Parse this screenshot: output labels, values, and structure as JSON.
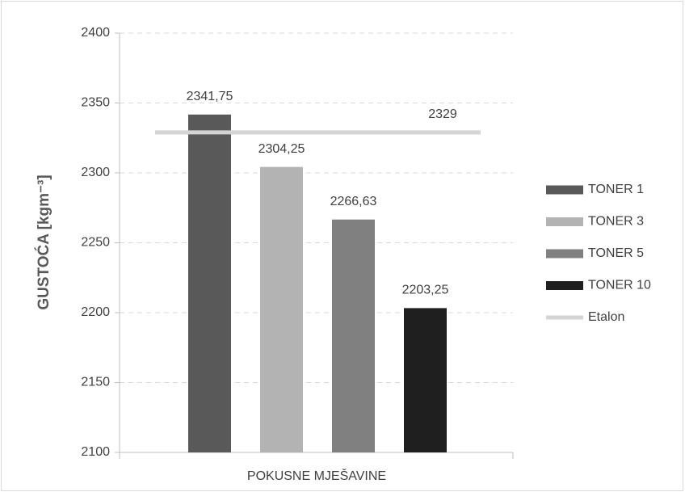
{
  "chart_data": {
    "type": "bar",
    "y_label": "GUSTOĆA [kgm⁻³]",
    "x_label": "POKUSNE MJEŠAVINE",
    "categories": [
      "POKUSNE MJEŠAVINE"
    ],
    "series": [
      {
        "name": "TONER 1",
        "color": "#595959",
        "values": [
          2341.75
        ],
        "value_labels": [
          "2341,75"
        ]
      },
      {
        "name": "TONER 3",
        "color": "#b3b3b3",
        "values": [
          2304.25
        ],
        "value_labels": [
          "2304,25"
        ]
      },
      {
        "name": "TONER 5",
        "color": "#808080",
        "values": [
          2266.63
        ],
        "value_labels": [
          "2266,63"
        ]
      },
      {
        "name": "TONER 10",
        "color": "#1f1f1f",
        "values": [
          2203.25
        ],
        "value_labels": [
          "2203,25"
        ]
      }
    ],
    "reference": {
      "name": "Etalon",
      "value": 2329,
      "color": "#d4d4d4"
    },
    "ylim": [
      2100,
      2400
    ],
    "yticks": [
      2100,
      2150,
      2200,
      2250,
      2300,
      2350,
      2400
    ],
    "grid": true,
    "legend": "right"
  }
}
